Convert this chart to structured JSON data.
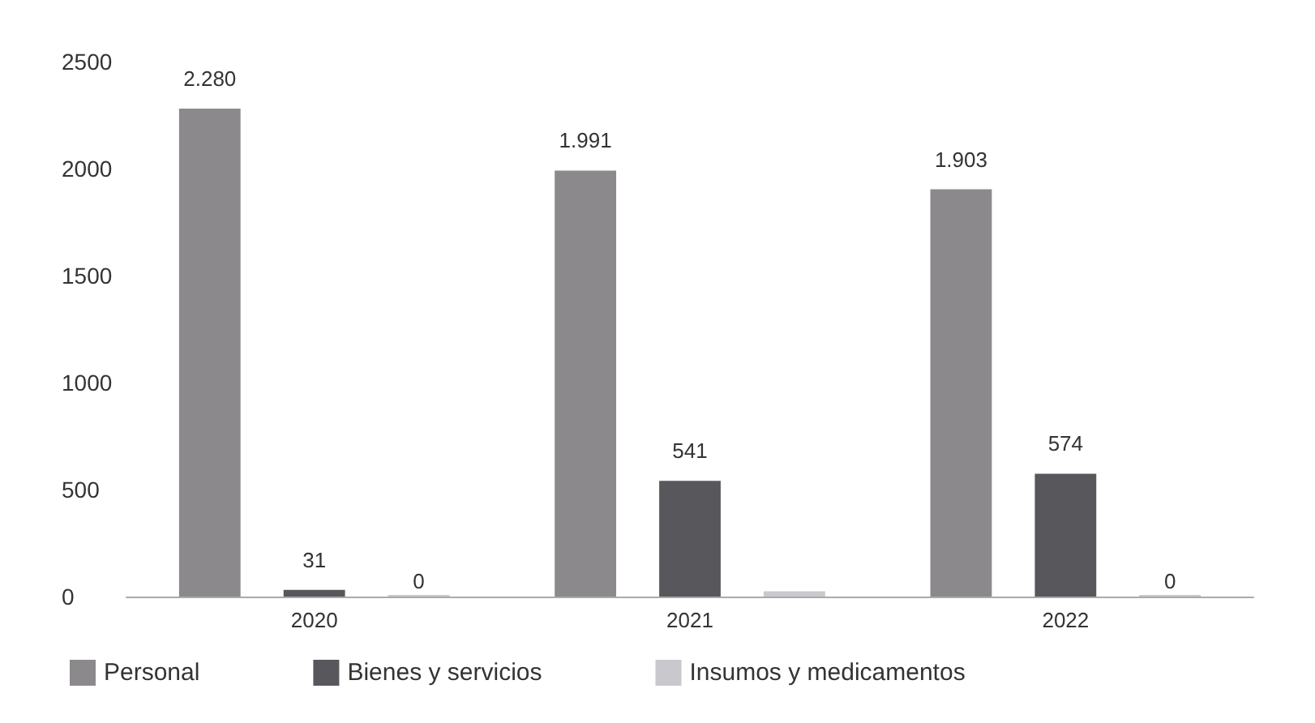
{
  "chart_data": {
    "type": "bar",
    "categories": [
      "2020",
      "2021",
      "2022"
    ],
    "series": [
      {
        "name": "Personal",
        "color": "#8b898c",
        "values": [
          2280,
          1991,
          1903
        ],
        "value_labels": [
          "2.280",
          "1.991",
          "1.903"
        ]
      },
      {
        "name": "Bienes y servicios",
        "color": "#58575b",
        "values": [
          31,
          541,
          574
        ],
        "value_labels": [
          "31",
          "541",
          "574"
        ]
      },
      {
        "name": "Insumos y medicamentos",
        "color": "#c9c8cc",
        "values": [
          0,
          25,
          0
        ],
        "value_labels": [
          "0",
          null,
          "0"
        ]
      }
    ],
    "ylim": [
      0,
      2500
    ],
    "yticks": [
      0,
      500,
      1000,
      1500,
      2000,
      2500
    ],
    "grid": false,
    "legend": "bottom"
  }
}
